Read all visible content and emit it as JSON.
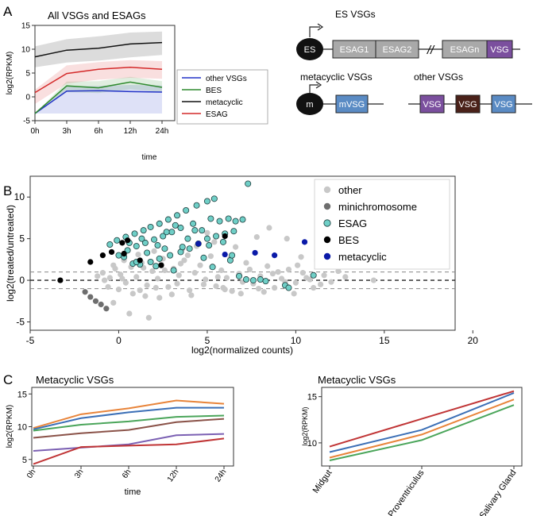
{
  "panel_labels": {
    "a": "A",
    "b": "B",
    "c": "C"
  },
  "colors": {
    "other_vsgs": "#2434c8",
    "bes": "#2f8a2f",
    "metacyclic": "#111111",
    "esag": "#d42a2a",
    "other_pt": "#c8c8c8",
    "minichromosome_pt": "#6e6e6e",
    "esag_pt": "#6fcfc7",
    "bes_pt": "#000000",
    "metacyclic_pt": "#0a1aa8",
    "esag_box": "#a9a9a9",
    "vsg_purple": "#7b4f9e",
    "vsg_brown": "#4a2119",
    "mvsg_blue": "#5a8bc4"
  },
  "diagram": {
    "es_title": "ES VSGs",
    "es_promoter": "ES",
    "es_boxes": [
      "ESAG1",
      "ESAG2",
      "ESAGn",
      "VSG"
    ],
    "break_mark": "//",
    "meta_title": "metacyclic VSGs",
    "meta_promoter": "m",
    "meta_box": "mVSG",
    "other_title": "other VSGs",
    "other_boxes": [
      "VSG",
      "VSG",
      "VSG"
    ]
  },
  "chart_data": [
    {
      "id": "A",
      "type": "line",
      "title": "All VSGs and ESAGs",
      "xlabel": "time",
      "ylabel": "log2(RPKM)",
      "categories": [
        "0h",
        "3h",
        "6h",
        "12h",
        "24h"
      ],
      "yticks": [
        -5,
        0,
        5,
        10,
        15
      ],
      "ylim": [
        -5,
        15
      ],
      "series": [
        {
          "name": "other VSGs",
          "color_key": "other_vsgs",
          "values": [
            -3.5,
            1.2,
            1.3,
            1.1,
            1.0
          ],
          "lower": [
            -3.5,
            -3.5,
            -3.5,
            -3.5,
            -3.5
          ],
          "upper": [
            -3.5,
            2.2,
            2.3,
            2.5,
            2.4
          ]
        },
        {
          "name": "BES",
          "color_key": "bes",
          "values": [
            -3.5,
            2.3,
            1.9,
            3.1,
            2.0
          ],
          "lower": [
            -3.5,
            1.0,
            0.8,
            1.6,
            1.0
          ],
          "upper": [
            -3.5,
            3.2,
            3.3,
            4.2,
            3.3
          ]
        },
        {
          "name": "metacyclic",
          "color_key": "metacyclic",
          "values": [
            8.4,
            9.8,
            10.2,
            11.1,
            11.4
          ],
          "lower": [
            6.2,
            7.2,
            7.6,
            8.3,
            8.8
          ],
          "upper": [
            10.6,
            12.1,
            12.7,
            13.5,
            13.7
          ]
        },
        {
          "name": "ESAG",
          "color_key": "esag",
          "values": [
            0.9,
            4.9,
            5.8,
            6.2,
            5.8
          ],
          "lower": [
            -1.5,
            2.8,
            3.6,
            4.0,
            3.8
          ],
          "upper": [
            1.5,
            6.6,
            7.3,
            7.7,
            7.5
          ]
        }
      ]
    },
    {
      "id": "B",
      "type": "scatter",
      "xlabel": "log2(normalized counts)",
      "ylabel": "log2(treated/untreated)",
      "xticks": [
        -5,
        0,
        5,
        10,
        15,
        20
      ],
      "yticks": [
        -5,
        0,
        5,
        10
      ],
      "xlim": [
        -5,
        19
      ],
      "ylim": [
        -6,
        12.5
      ],
      "hlines": [
        {
          "y": 0,
          "style": "dark"
        },
        {
          "y": 1,
          "style": "light"
        },
        {
          "y": -1,
          "style": "light"
        }
      ],
      "series": [
        {
          "name": "other",
          "color_key": "other_pt",
          "points": [
            [
              -1.2,
              0.5
            ],
            [
              -0.9,
              0.9
            ],
            [
              -0.5,
              0.3
            ],
            [
              -0.2,
              1.4
            ],
            [
              0.1,
              0.7
            ],
            [
              0.4,
              -0.3
            ],
            [
              0.7,
              1.6
            ],
            [
              1.0,
              0.4
            ],
            [
              1.3,
              2.1
            ],
            [
              1.6,
              -0.6
            ],
            [
              1.9,
              1.1
            ],
            [
              2.2,
              0.2
            ],
            [
              2.5,
              2.6
            ],
            [
              2.8,
              -0.8
            ],
            [
              3.1,
              1.4
            ],
            [
              3.4,
              0.6
            ],
            [
              3.7,
              2.4
            ],
            [
              4.0,
              -1.2
            ],
            [
              4.3,
              0.9
            ],
            [
              4.6,
              1.8
            ],
            [
              4.9,
              0.1
            ],
            [
              5.2,
              2.9
            ],
            [
              5.5,
              -0.7
            ],
            [
              5.8,
              1.2
            ],
            [
              6.1,
              0.3
            ],
            [
              6.4,
              -1.3
            ],
            [
              6.8,
              0.8
            ],
            [
              7.2,
              2.1
            ],
            [
              7.6,
              -0.4
            ],
            [
              8.0,
              0.5
            ],
            [
              8.4,
              1.7
            ],
            [
              8.8,
              -0.9
            ],
            [
              9.2,
              0.2
            ],
            [
              9.6,
              1.3
            ],
            [
              10.0,
              -0.3
            ],
            [
              10.4,
              0.9
            ],
            [
              10.8,
              0.1
            ],
            [
              11.2,
              2.4
            ],
            [
              11.6,
              0.6
            ],
            [
              12.0,
              -0.2
            ],
            [
              12.4,
              1.1
            ],
            [
              14.4,
              0.0
            ],
            [
              -0.6,
              -0.8
            ],
            [
              0.0,
              -1.1
            ],
            [
              0.8,
              -1.6
            ],
            [
              1.5,
              -1.9
            ],
            [
              2.3,
              -2.1
            ],
            [
              3.0,
              -1.7
            ],
            [
              0.3,
              2.4
            ],
            [
              1.1,
              3.1
            ],
            [
              2.0,
              3.5
            ],
            [
              3.6,
              3.8
            ],
            [
              4.4,
              4.1
            ],
            [
              5.4,
              4.6
            ],
            [
              6.6,
              4.0
            ],
            [
              7.8,
              5.2
            ],
            [
              8.5,
              6.3
            ],
            [
              9.5,
              5.0
            ],
            [
              10.3,
              2.8
            ],
            [
              12.2,
              3.2
            ],
            [
              13.2,
              2.0
            ],
            [
              1.7,
              -4.5
            ],
            [
              0.6,
              -4.0
            ],
            [
              -0.3,
              -2.7
            ],
            [
              2.6,
              1.2
            ],
            [
              3.3,
              -0.4
            ],
            [
              4.8,
              -0.5
            ],
            [
              5.9,
              -0.9
            ],
            [
              6.9,
              -1.6
            ],
            [
              7.4,
              1.3
            ],
            [
              8.2,
              -1.4
            ],
            [
              9.0,
              1.0
            ],
            [
              9.9,
              -1.6
            ],
            [
              10.6,
              0.3
            ],
            [
              11.4,
              -0.5
            ],
            [
              12.8,
              0.4
            ],
            [
              3.9,
              3.0
            ],
            [
              5.0,
              5.7
            ],
            [
              6.3,
              2.6
            ],
            [
              1.2,
              -1.2
            ],
            [
              2.1,
              -0.9
            ],
            [
              4.1,
              -1.8
            ],
            [
              5.6,
              0.4
            ],
            [
              7.0,
              -0.2
            ],
            [
              -0.8,
              0.0
            ],
            [
              0.2,
              0.2
            ],
            [
              -0.3,
              1.8
            ],
            [
              1.4,
              1.5
            ],
            [
              2.4,
              1.9
            ],
            [
              3.5,
              2.0
            ],
            [
              8.7,
              0.8
            ],
            [
              9.4,
              -0.2
            ],
            [
              10.1,
              1.8
            ],
            [
              11.0,
              -0.9
            ],
            [
              6.0,
              -1.1
            ],
            [
              7.9,
              -1.0
            ]
          ]
        },
        {
          "name": "minichromosome",
          "color_key": "minichromosome_pt",
          "points": [
            [
              -1.9,
              -1.4
            ],
            [
              -1.6,
              -2.0
            ],
            [
              -1.3,
              -2.5
            ],
            [
              -1.0,
              -2.9
            ],
            [
              -0.7,
              -3.4
            ]
          ]
        },
        {
          "name": "ESAG",
          "color_key": "esag_pt",
          "points": [
            [
              -0.5,
              4.3
            ],
            [
              -0.1,
              4.8
            ],
            [
              0.4,
              5.2
            ],
            [
              0.9,
              5.6
            ],
            [
              1.4,
              6.0
            ],
            [
              1.8,
              6.4
            ],
            [
              2.3,
              6.8
            ],
            [
              2.8,
              7.3
            ],
            [
              3.3,
              7.8
            ],
            [
              3.8,
              8.4
            ],
            [
              4.4,
              9.0
            ],
            [
              5.0,
              9.5
            ],
            [
              5.4,
              9.8
            ],
            [
              0.0,
              3.0
            ],
            [
              0.5,
              3.6
            ],
            [
              1.0,
              4.1
            ],
            [
              1.5,
              4.5
            ],
            [
              2.0,
              4.9
            ],
            [
              2.5,
              5.3
            ],
            [
              3.0,
              5.8
            ],
            [
              3.5,
              6.3
            ],
            [
              4.2,
              6.8
            ],
            [
              5.2,
              7.4
            ],
            [
              5.7,
              7.1
            ],
            [
              6.2,
              7.4
            ],
            [
              6.6,
              7.1
            ],
            [
              7.0,
              7.3
            ],
            [
              7.3,
              11.6
            ],
            [
              6.5,
              5.9
            ],
            [
              6.0,
              5.6
            ],
            [
              5.5,
              5.3
            ],
            [
              5.0,
              5.0
            ],
            [
              4.5,
              4.4
            ],
            [
              4.0,
              3.8
            ],
            [
              3.5,
              3.4
            ],
            [
              2.9,
              3.0
            ],
            [
              2.3,
              2.6
            ],
            [
              1.8,
              2.2
            ],
            [
              1.2,
              1.9
            ],
            [
              0.8,
              2.0
            ],
            [
              4.3,
              6.0
            ],
            [
              4.8,
              2.7
            ],
            [
              5.3,
              1.6
            ],
            [
              6.3,
              2.4
            ],
            [
              6.8,
              0.5
            ],
            [
              7.2,
              0.1
            ],
            [
              7.6,
              0.0
            ],
            [
              8.0,
              0.1
            ],
            [
              8.3,
              -0.1
            ],
            [
              9.4,
              -0.6
            ],
            [
              9.6,
              -0.9
            ],
            [
              11.0,
              0.6
            ],
            [
              1.6,
              3.3
            ],
            [
              2.6,
              3.8
            ],
            [
              3.6,
              4.0
            ],
            [
              0.3,
              2.8
            ],
            [
              1.0,
              2.2
            ],
            [
              2.1,
              1.7
            ],
            [
              3.1,
              1.2
            ],
            [
              4.7,
              6.0
            ],
            [
              5.9,
              4.6
            ],
            [
              6.4,
              3.0
            ],
            [
              5.1,
              4.2
            ],
            [
              3.9,
              5.0
            ],
            [
              2.7,
              5.8
            ],
            [
              3.2,
              6.6
            ],
            [
              0.6,
              4.5
            ],
            [
              1.3,
              5.0
            ],
            [
              2.2,
              4.2
            ]
          ]
        },
        {
          "name": "BES",
          "color_key": "bes_pt",
          "points": [
            [
              -3.3,
              0.0
            ],
            [
              -1.6,
              2.2
            ],
            [
              -0.9,
              3.0
            ],
            [
              -0.4,
              3.4
            ],
            [
              0.2,
              4.5
            ],
            [
              0.5,
              4.8
            ],
            [
              0.3,
              3.2
            ],
            [
              1.2,
              2.4
            ],
            [
              2.4,
              1.8
            ],
            [
              6.0,
              5.3
            ]
          ]
        },
        {
          "name": "metacyclic",
          "color_key": "metacyclic_pt",
          "points": [
            [
              4.5,
              4.4
            ],
            [
              6.0,
              3.1
            ],
            [
              7.7,
              3.3
            ],
            [
              8.8,
              3.0
            ],
            [
              10.5,
              4.6
            ],
            [
              11.7,
              5.2
            ]
          ]
        }
      ]
    },
    {
      "id": "C1",
      "type": "line",
      "title": "Metacyclic VSGs",
      "xlabel": "time",
      "ylabel": "log2(RPKM)",
      "categories": [
        "0h",
        "3h",
        "6h",
        "12h",
        "24h"
      ],
      "yticks": [
        5,
        10,
        15
      ],
      "ylim": [
        4,
        16
      ],
      "series": [
        {
          "name": "orange",
          "color": "#e8843a",
          "values": [
            9.8,
            11.9,
            12.8,
            14.0,
            13.5
          ]
        },
        {
          "name": "blue",
          "color": "#3b6fb6",
          "values": [
            9.6,
            11.3,
            12.2,
            12.9,
            12.9
          ]
        },
        {
          "name": "green",
          "color": "#4aa55a",
          "values": [
            9.4,
            10.3,
            10.8,
            11.5,
            11.7
          ]
        },
        {
          "name": "brown",
          "color": "#8a5248",
          "values": [
            8.3,
            9.0,
            9.5,
            10.7,
            11.2
          ]
        },
        {
          "name": "purple",
          "color": "#7b60b3",
          "values": [
            6.3,
            6.8,
            7.3,
            8.7,
            8.9
          ]
        },
        {
          "name": "red",
          "color": "#c03536",
          "values": [
            4.3,
            6.9,
            7.1,
            7.3,
            8.2
          ]
        }
      ]
    },
    {
      "id": "C2",
      "type": "line",
      "title": "Metacyclic VSGs",
      "xlabel": "",
      "ylabel": "log2(RPKM)",
      "categories": [
        "Midgut",
        "Proventriculus",
        "Salivary Gland"
      ],
      "yticks": [
        10,
        15
      ],
      "ylim": [
        7.5,
        16
      ],
      "series": [
        {
          "name": "red",
          "color": "#c03536",
          "values": [
            9.6,
            12.6,
            15.6
          ]
        },
        {
          "name": "blue",
          "color": "#3b6fb6",
          "values": [
            9.0,
            11.4,
            15.4
          ]
        },
        {
          "name": "orange",
          "color": "#e8843a",
          "values": [
            8.4,
            10.9,
            14.7
          ]
        },
        {
          "name": "green",
          "color": "#4aa55a",
          "values": [
            8.1,
            10.3,
            14.1
          ]
        }
      ]
    }
  ]
}
